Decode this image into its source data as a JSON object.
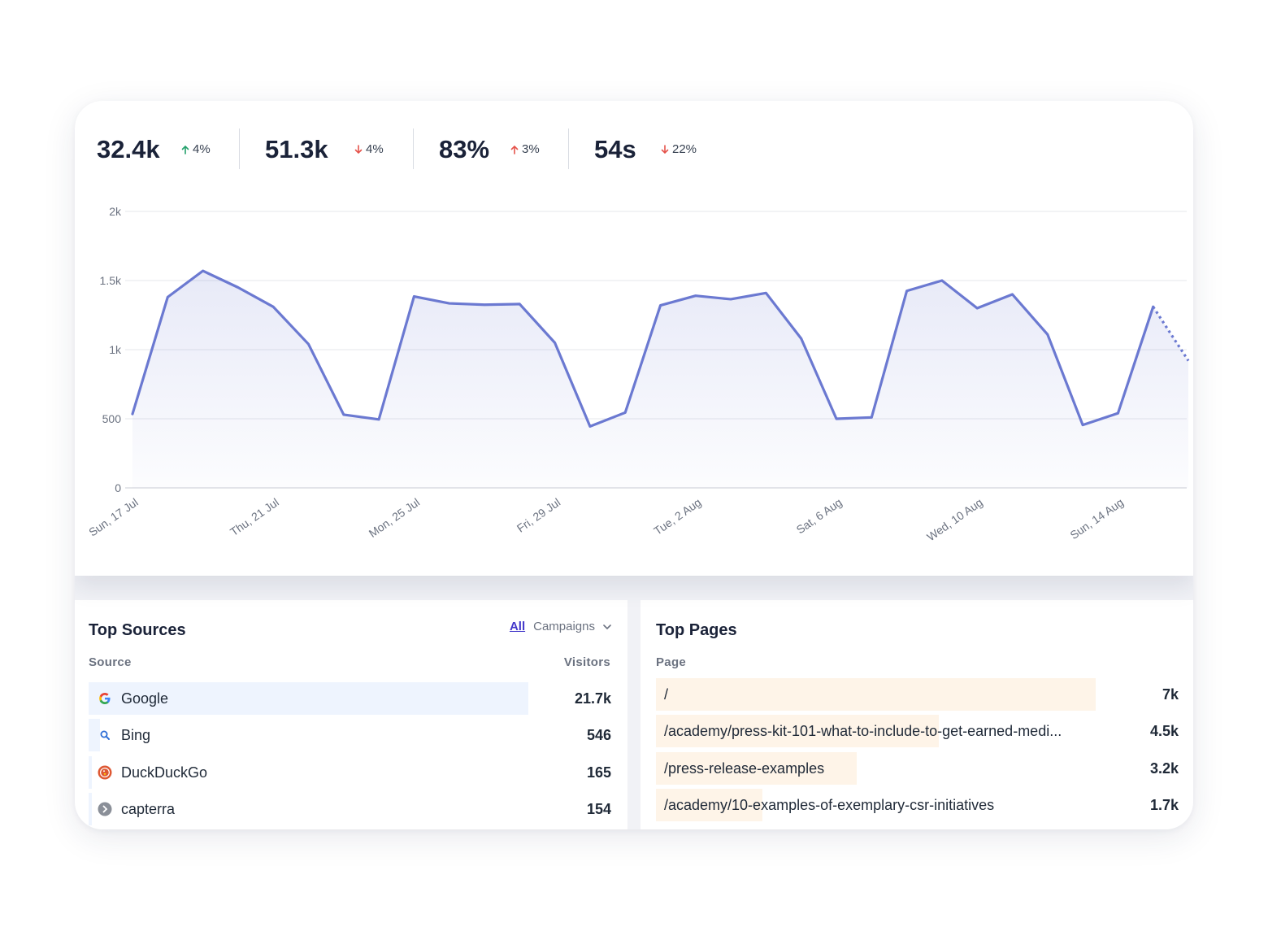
{
  "stats": [
    {
      "value": "32.4k",
      "change": "4%",
      "direction": "up"
    },
    {
      "value": "51.3k",
      "change": "4%",
      "direction": "down"
    },
    {
      "value": "83%",
      "change": "3%",
      "direction": "up"
    },
    {
      "value": "54s",
      "change": "22%",
      "direction": "down"
    }
  ],
  "colors": {
    "line": "#6b79d1",
    "up": "#22a06b",
    "down": "#e5534b",
    "sources_bar": "#eef4fe",
    "pages_bar": "#fef4e8"
  },
  "chart_data": {
    "type": "area",
    "y_ticks": [
      "0",
      "500",
      "1k",
      "1.5k",
      "2k"
    ],
    "ylim": [
      0,
      2000
    ],
    "x_tick_labels": [
      "Sun, 17 Jul",
      "Thu, 21 Jul",
      "Mon, 25 Jul",
      "Fri, 29 Jul",
      "Tue, 2 Aug",
      "Sat, 6 Aug",
      "Wed, 10 Aug",
      "Sun, 14 Aug"
    ],
    "x_start": "2022-07-17",
    "values": [
      535,
      1380,
      1570,
      1450,
      1310,
      1040,
      530,
      495,
      1385,
      1335,
      1325,
      1330,
      1050,
      445,
      545,
      1320,
      1390,
      1365,
      1410,
      1080,
      500,
      510,
      1425,
      1500,
      1300,
      1400,
      1110,
      455,
      540,
      1310,
      920
    ],
    "incomplete_last": true,
    "grid": true
  },
  "sources": {
    "title": "Top Sources",
    "tab_all": "All",
    "tab_campaigns": "Campaigns",
    "col_source": "Source",
    "col_visitors": "Visitors",
    "rows": [
      {
        "label": "Google",
        "value": "21.7k",
        "fraction": 1.0,
        "icon": "google-icon"
      },
      {
        "label": "Bing",
        "value": "546",
        "fraction": 0.0252,
        "icon": "bing-search-icon"
      },
      {
        "label": "DuckDuckGo",
        "value": "165",
        "fraction": 0.0076,
        "icon": "duckduckgo-icon"
      },
      {
        "label": "capterra",
        "value": "154",
        "fraction": 0.0071,
        "icon": "capterra-icon"
      }
    ]
  },
  "pages": {
    "title": "Top Pages",
    "col_page": "Page",
    "rows": [
      {
        "label": "/",
        "value": "7k",
        "fraction": 1.0
      },
      {
        "label": "/academy/press-kit-101-what-to-include-to-get-earned-medi...",
        "value": "4.5k",
        "fraction": 0.643
      },
      {
        "label": "/press-release-examples",
        "value": "3.2k",
        "fraction": 0.457
      },
      {
        "label": "/academy/10-examples-of-exemplary-csr-initiatives",
        "value": "1.7k",
        "fraction": 0.243
      }
    ]
  }
}
